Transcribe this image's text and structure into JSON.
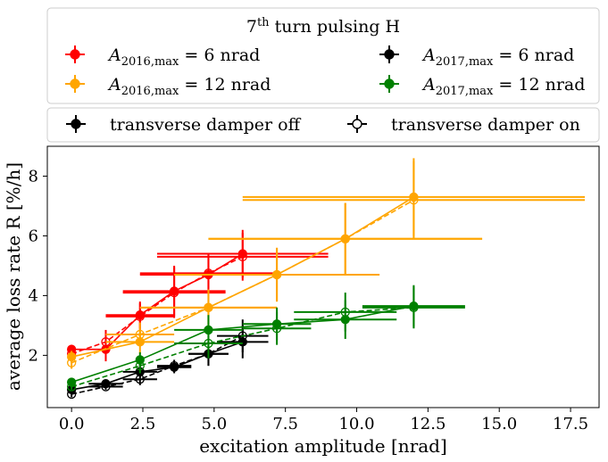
{
  "chart_data": {
    "type": "scatter",
    "title": "",
    "xlabel": "excitation amplitude [nrad]",
    "ylabel": "average loss rate R [%/h]",
    "xlim": [
      -0.85,
      18.5
    ],
    "ylim": [
      0.25,
      9.0
    ],
    "xticks": [
      "0.0",
      "2.5",
      "5.0",
      "7.5",
      "10.0",
      "12.5",
      "15.0",
      "17.5"
    ],
    "xtick_values": [
      0,
      2.5,
      5,
      7.5,
      10,
      12.5,
      15,
      17.5
    ],
    "yticks": [
      "2",
      "4",
      "6",
      "8"
    ],
    "ytick_values": [
      2,
      4,
      6,
      8
    ],
    "grid": false,
    "legend_top": {
      "title": "7th turn pulsing H",
      "title_base": "7",
      "title_sup": "th",
      "title_rest": " turn pulsing H",
      "placement": "above-plot",
      "entries": [
        {
          "name": "A2016,max = 6 nrad",
          "sym": "A",
          "sub": "2016,max",
          "rest": " = 6 nrad",
          "color": "#ff0000"
        },
        {
          "name": "A2016,max = 12 nrad",
          "sym": "A",
          "sub": "2016,max",
          "rest": " = 12 nrad",
          "color": "#ffa500"
        },
        {
          "name": "A2017,max = 6 nrad",
          "sym": "A",
          "sub": "2017,max",
          "rest": " = 6 nrad",
          "color": "#000000"
        },
        {
          "name": "A2017,max = 12 nrad",
          "sym": "A",
          "sub": "2017,max",
          "rest": " = 12 nrad",
          "color": "#008000"
        }
      ]
    },
    "legend_bottom": {
      "placement": "above-plot",
      "entries": [
        {
          "name": "transverse damper off",
          "marker": "filled"
        },
        {
          "name": "transverse damper on",
          "marker": "open"
        }
      ]
    },
    "series": [
      {
        "name": "A2016,max = 6 nrad",
        "color": "#ff0000",
        "damper": "off",
        "line": "solid",
        "points": [
          {
            "x": 0,
            "y": 2.2,
            "xerr": 0,
            "yerr": 0.15
          },
          {
            "x": 1.2,
            "y": 2.2,
            "xerr": 0,
            "yerr": 0.4
          },
          {
            "x": 2.4,
            "y": 3.35,
            "xerr": 1.2,
            "yerr": 0.45
          },
          {
            "x": 3.6,
            "y": 4.15,
            "xerr": 1.8,
            "yerr": 0.85
          },
          {
            "x": 4.8,
            "y": 4.7,
            "xerr": 2.4,
            "yerr": 0.65
          },
          {
            "x": 6.0,
            "y": 5.4,
            "xerr": 3.0,
            "yerr": 0.8
          }
        ]
      },
      {
        "name": "A2016,max = 6 nrad",
        "color": "#ff0000",
        "damper": "on",
        "line": "dashed",
        "points": [
          {
            "x": 0,
            "y": 2.05,
            "xerr": 0,
            "yerr": 0.15
          },
          {
            "x": 1.2,
            "y": 2.45,
            "xerr": 0,
            "yerr": 0.4
          },
          {
            "x": 2.4,
            "y": 3.3,
            "xerr": 1.2,
            "yerr": 0.45
          },
          {
            "x": 3.6,
            "y": 4.1,
            "xerr": 1.8,
            "yerr": 0.85
          },
          {
            "x": 4.8,
            "y": 4.75,
            "xerr": 2.4,
            "yerr": 0.65
          },
          {
            "x": 6.0,
            "y": 5.3,
            "xerr": 3.0,
            "yerr": 0.8
          }
        ]
      },
      {
        "name": "A2016,max = 12 nrad",
        "color": "#ffa500",
        "damper": "off",
        "line": "solid",
        "points": [
          {
            "x": 0,
            "y": 1.95,
            "xerr": 0,
            "yerr": 0.2
          },
          {
            "x": 2.4,
            "y": 2.45,
            "xerr": 1.2,
            "yerr": 0.4
          },
          {
            "x": 4.8,
            "y": 3.6,
            "xerr": 2.4,
            "yerr": 0.6
          },
          {
            "x": 7.2,
            "y": 4.7,
            "xerr": 3.6,
            "yerr": 0.9
          },
          {
            "x": 9.6,
            "y": 5.9,
            "xerr": 4.8,
            "yerr": 1.2
          },
          {
            "x": 12.0,
            "y": 7.3,
            "xerr": 6.0,
            "yerr": 1.3
          }
        ]
      },
      {
        "name": "A2016,max = 12 nrad",
        "color": "#ffa500",
        "damper": "on",
        "line": "dashed",
        "points": [
          {
            "x": 0,
            "y": 1.75,
            "xerr": 0,
            "yerr": 0.2
          },
          {
            "x": 2.4,
            "y": 2.7,
            "xerr": 1.2,
            "yerr": 0.4
          },
          {
            "x": 4.8,
            "y": 3.6,
            "xerr": 2.4,
            "yerr": 0.6
          },
          {
            "x": 7.2,
            "y": 4.7,
            "xerr": 3.6,
            "yerr": 0.9
          },
          {
            "x": 9.6,
            "y": 5.9,
            "xerr": 4.8,
            "yerr": 1.2
          },
          {
            "x": 12.0,
            "y": 7.2,
            "xerr": 6.0,
            "yerr": 1.3
          }
        ]
      },
      {
        "name": "A2017,max = 6 nrad",
        "color": "#000000",
        "damper": "off",
        "line": "solid",
        "points": [
          {
            "x": 0,
            "y": 0.85,
            "xerr": 0,
            "yerr": 0.1
          },
          {
            "x": 1.2,
            "y": 1.05,
            "xerr": 0.6,
            "yerr": 0.1
          },
          {
            "x": 2.4,
            "y": 1.45,
            "xerr": 0.6,
            "yerr": 0.2
          },
          {
            "x": 3.6,
            "y": 1.6,
            "xerr": 0.6,
            "yerr": 0.2
          },
          {
            "x": 4.8,
            "y": 2.05,
            "xerr": 0.7,
            "yerr": 0.4
          },
          {
            "x": 6.0,
            "y": 2.45,
            "xerr": 0.9,
            "yerr": 0.55
          }
        ]
      },
      {
        "name": "A2017,max = 6 nrad",
        "color": "#000000",
        "damper": "on",
        "line": "dashed",
        "points": [
          {
            "x": 0,
            "y": 0.7,
            "xerr": 0,
            "yerr": 0.1
          },
          {
            "x": 1.2,
            "y": 0.95,
            "xerr": 0.6,
            "yerr": 0.1
          },
          {
            "x": 2.4,
            "y": 1.2,
            "xerr": 0.6,
            "yerr": 0.2
          },
          {
            "x": 3.6,
            "y": 1.65,
            "xerr": 0.6,
            "yerr": 0.2
          },
          {
            "x": 4.8,
            "y": 2.05,
            "xerr": 0.7,
            "yerr": 0.4
          },
          {
            "x": 6.0,
            "y": 2.65,
            "xerr": 0.9,
            "yerr": 0.55
          }
        ]
      },
      {
        "name": "A2017,max = 12 nrad",
        "color": "#008000",
        "damper": "off",
        "line": "solid",
        "points": [
          {
            "x": 0,
            "y": 1.1,
            "xerr": 0,
            "yerr": 0.1
          },
          {
            "x": 2.4,
            "y": 1.85,
            "xerr": 0,
            "yerr": 0.25
          },
          {
            "x": 4.8,
            "y": 2.85,
            "xerr": 1.2,
            "yerr": 0.5
          },
          {
            "x": 7.2,
            "y": 3.05,
            "xerr": 1.2,
            "yerr": 0.55
          },
          {
            "x": 9.6,
            "y": 3.2,
            "xerr": 1.8,
            "yerr": 0.65
          },
          {
            "x": 12.0,
            "y": 3.65,
            "xerr": 1.8,
            "yerr": 0.7
          }
        ]
      },
      {
        "name": "A2017,max = 12 nrad",
        "color": "#008000",
        "damper": "on",
        "line": "dashed",
        "points": [
          {
            "x": 0,
            "y": 0.95,
            "xerr": 0,
            "yerr": 0.1
          },
          {
            "x": 2.4,
            "y": 1.65,
            "xerr": 0,
            "yerr": 0.25
          },
          {
            "x": 4.8,
            "y": 2.4,
            "xerr": 1.2,
            "yerr": 0.5
          },
          {
            "x": 7.2,
            "y": 2.9,
            "xerr": 1.2,
            "yerr": 0.55
          },
          {
            "x": 9.6,
            "y": 3.45,
            "xerr": 1.8,
            "yerr": 0.65
          },
          {
            "x": 12.0,
            "y": 3.6,
            "xerr": 1.8,
            "yerr": 0.7
          }
        ]
      }
    ]
  }
}
